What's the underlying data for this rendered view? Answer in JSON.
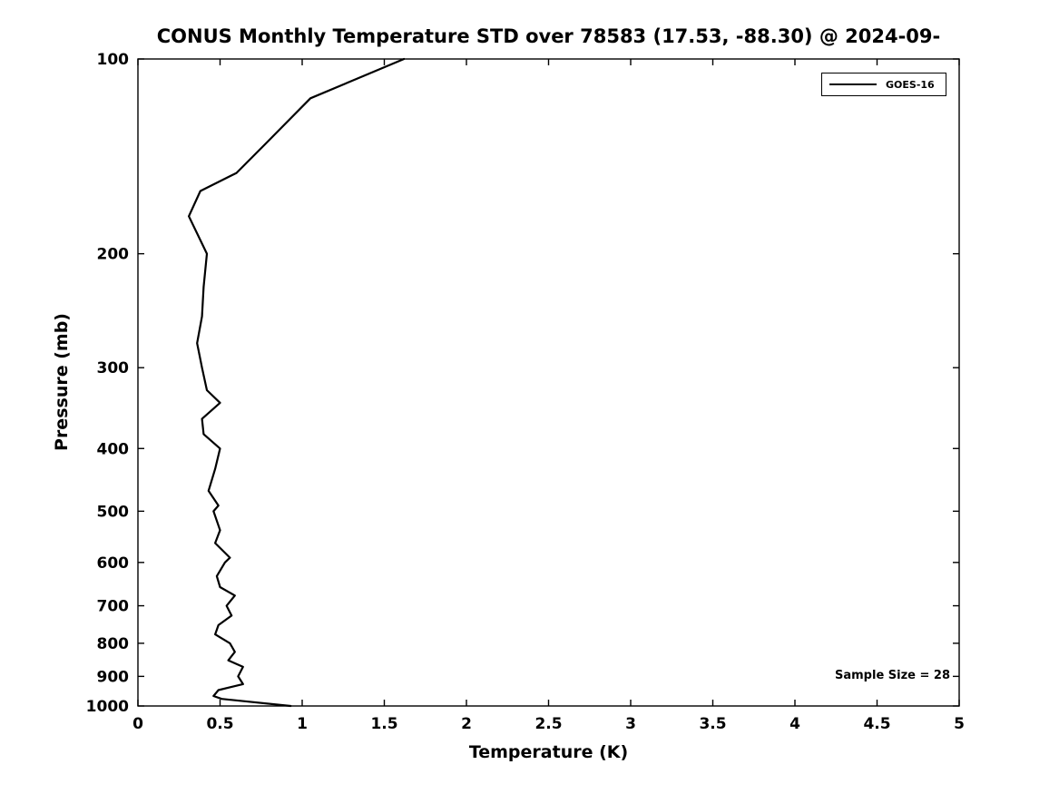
{
  "chart_data": {
    "type": "line",
    "title": "CONUS Monthly Temperature STD over 78583 (17.53, -88.30) @ 2024-09-",
    "xlabel": "Temperature (K)",
    "ylabel": "Pressure (mb)",
    "xlim": [
      0,
      5
    ],
    "ylim": [
      100,
      1000
    ],
    "yscale": "log",
    "y_direction": "increasing-downward",
    "xticks": [
      0,
      0.5,
      1,
      1.5,
      2,
      2.5,
      3,
      3.5,
      4,
      4.5,
      5
    ],
    "yticks": [
      100,
      200,
      300,
      400,
      500,
      600,
      700,
      800,
      900,
      1000
    ],
    "grid": false,
    "legend_position": "top-right",
    "series": [
      {
        "name": "GOES-16",
        "color": "#000000",
        "pressure": [
          100,
          115,
          135,
          150,
          160,
          175,
          200,
          225,
          250,
          275,
          300,
          325,
          340,
          360,
          380,
          400,
          430,
          465,
          490,
          500,
          535,
          560,
          590,
          600,
          630,
          655,
          675,
          700,
          725,
          750,
          775,
          800,
          825,
          850,
          870,
          900,
          925,
          945,
          965,
          975,
          1000
        ],
        "values": [
          1.62,
          1.05,
          0.78,
          0.6,
          0.38,
          0.31,
          0.42,
          0.4,
          0.39,
          0.36,
          0.39,
          0.42,
          0.5,
          0.39,
          0.4,
          0.5,
          0.47,
          0.43,
          0.49,
          0.46,
          0.5,
          0.47,
          0.56,
          0.53,
          0.48,
          0.5,
          0.59,
          0.54,
          0.57,
          0.49,
          0.47,
          0.56,
          0.59,
          0.55,
          0.64,
          0.61,
          0.64,
          0.49,
          0.46,
          0.51,
          0.93
        ]
      }
    ],
    "annotations": [
      {
        "text": "Sample Size = 28",
        "position": "bottom-right"
      }
    ]
  }
}
